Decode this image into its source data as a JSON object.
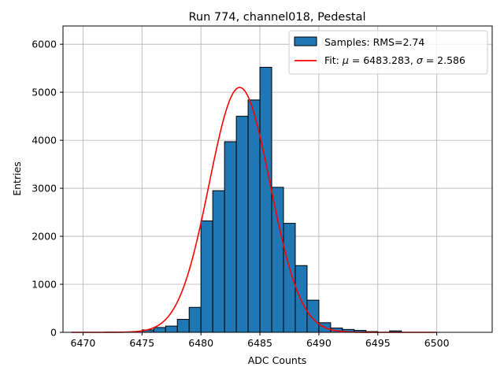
{
  "chart_data": {
    "type": "bar",
    "title": "Run 774, channel018, Pedestal",
    "xlabel": "ADC Counts",
    "ylabel": "Entries",
    "xlim": [
      6468.3,
      6504.7
    ],
    "ylim": [
      0,
      6380
    ],
    "grid": true,
    "legend_position": "top-right",
    "bin_width": 1,
    "x_ticks": [
      6470,
      6475,
      6480,
      6485,
      6490,
      6495,
      6500
    ],
    "x_tick_labels": [
      "6470",
      "6475",
      "6480",
      "6485",
      "6490",
      "6495",
      "6500"
    ],
    "y_ticks": [
      0,
      1000,
      2000,
      3000,
      4000,
      5000,
      6000
    ],
    "y_tick_labels": [
      "0",
      "1000",
      "2000",
      "3000",
      "4000",
      "5000",
      "6000"
    ],
    "histogram": {
      "name": "Samples: RMS=2.74",
      "color": "#1f77b4",
      "edge_color": "#000000",
      "bins": [
        {
          "left": 6475,
          "count": 50
        },
        {
          "left": 6476,
          "count": 100
        },
        {
          "left": 6477,
          "count": 130
        },
        {
          "left": 6478,
          "count": 270
        },
        {
          "left": 6479,
          "count": 520
        },
        {
          "left": 6480,
          "count": 2320
        },
        {
          "left": 6481,
          "count": 2950
        },
        {
          "left": 6482,
          "count": 3970
        },
        {
          "left": 6483,
          "count": 4500
        },
        {
          "left": 6484,
          "count": 4840
        },
        {
          "left": 6485,
          "count": 5520
        },
        {
          "left": 6486,
          "count": 3020
        },
        {
          "left": 6487,
          "count": 2270
        },
        {
          "left": 6488,
          "count": 1390
        },
        {
          "left": 6489,
          "count": 670
        },
        {
          "left": 6490,
          "count": 200
        },
        {
          "left": 6491,
          "count": 90
        },
        {
          "left": 6492,
          "count": 60
        },
        {
          "left": 6493,
          "count": 40
        },
        {
          "left": 6494,
          "count": 15
        },
        {
          "left": 6496,
          "count": 30
        }
      ]
    },
    "fit": {
      "name": "Fit: μ = 6483.283, σ = 2.586",
      "label_prefix": "Fit: ",
      "mu_symbol": "μ",
      "mu_text": " = 6483.283, ",
      "sigma_symbol": "σ",
      "sigma_text": " = 2.586",
      "color": "#ff0000",
      "mu": 6483.283,
      "sigma": 2.586,
      "amplitude": 5100,
      "x_range": [
        6469,
        6500
      ]
    },
    "colors": {
      "grid": "#b0b0b0",
      "axes": "#000000"
    }
  }
}
